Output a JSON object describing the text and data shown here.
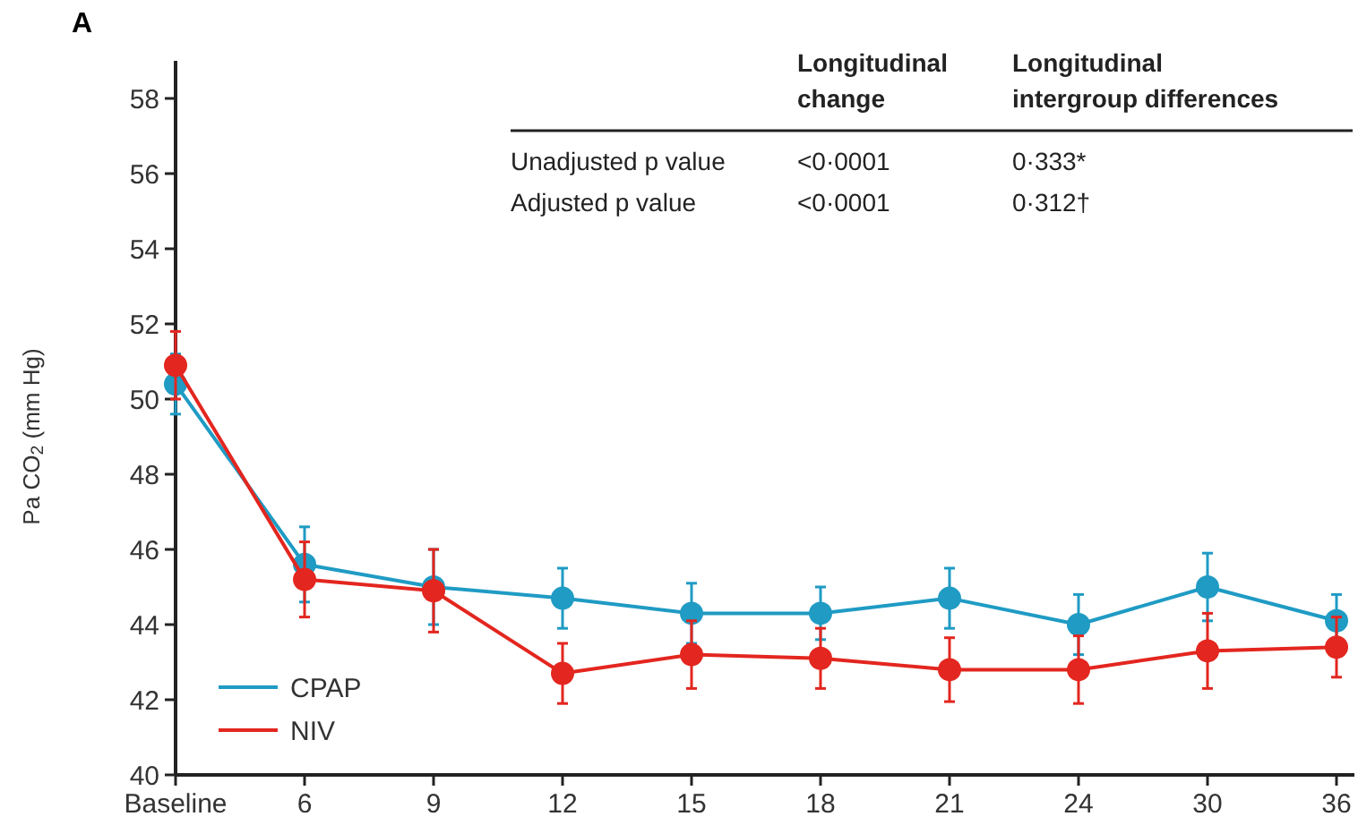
{
  "chart_data": {
    "type": "line",
    "title": "A",
    "ylabel": "Pa CO$_{2}$ (mm Hg)",
    "categories": [
      "Baseline",
      "6",
      "9",
      "12",
      "15",
      "18",
      "21",
      "24",
      "30",
      "36"
    ],
    "ylim": [
      40,
      59
    ],
    "yticks": [
      40,
      42,
      44,
      46,
      48,
      50,
      52,
      54,
      56,
      58
    ],
    "series": [
      {
        "name": "CPAP",
        "color": "#1f9bc4",
        "values": [
          50.4,
          45.6,
          45.0,
          44.7,
          44.3,
          44.3,
          44.7,
          44.0,
          45.0,
          44.1
        ],
        "errors": [
          0.8,
          1.0,
          1.0,
          0.8,
          0.8,
          0.7,
          0.8,
          0.8,
          0.9,
          0.7
        ]
      },
      {
        "name": "NIV",
        "color": "#e3261f",
        "values": [
          50.9,
          45.2,
          44.9,
          42.7,
          43.2,
          43.1,
          42.8,
          42.8,
          43.3,
          43.4
        ],
        "errors": [
          0.9,
          1.0,
          1.1,
          0.8,
          0.9,
          0.8,
          0.85,
          0.9,
          1.0,
          0.8
        ]
      }
    ],
    "marker": "circle",
    "line_style": "solid",
    "legend": "bottom left",
    "grid": false,
    "annotations": [
      "Longitudinal change",
      "Longitudinal intergroup differences",
      "Unadjusted p value",
      "<0·0001",
      "0·333*",
      "Adjusted p value",
      "<0·0001",
      "0·312†"
    ]
  }
}
